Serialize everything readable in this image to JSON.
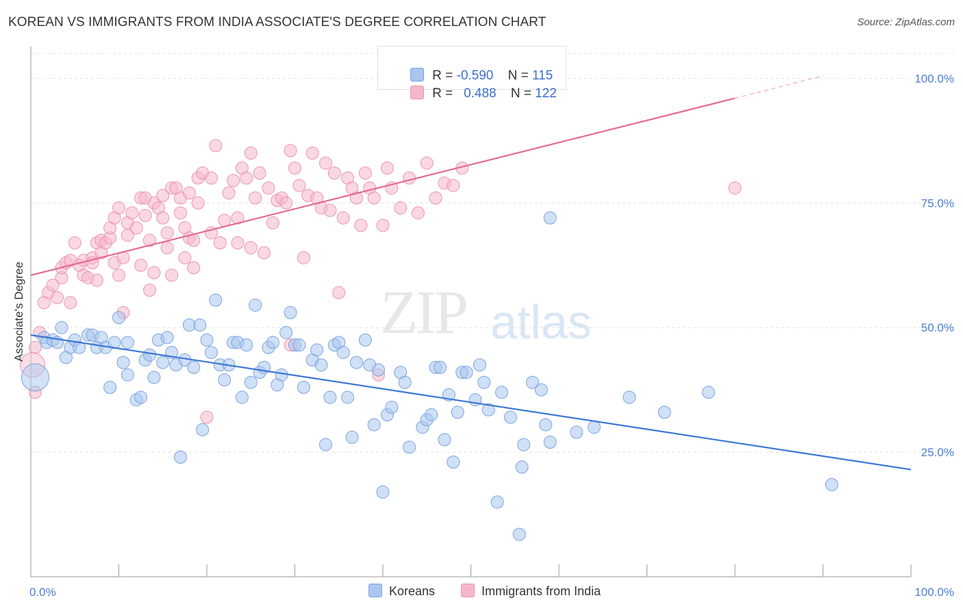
{
  "title": "KOREAN VS IMMIGRANTS FROM INDIA ASSOCIATE'S DEGREE CORRELATION CHART",
  "source": "Source: ZipAtlas.com",
  "watermark": {
    "zip": "ZIP",
    "atlas": "atlas"
  },
  "legend": {
    "rows": [
      {
        "r_label": "R = ",
        "r_value": "-0.590",
        "n_label": "N = ",
        "n_value": "115",
        "color": "#aac6ee"
      },
      {
        "r_label": "R = ",
        "r_value": "0.488",
        "n_label": "N = ",
        "n_value": "122",
        "color": "#f5b8cb"
      }
    ]
  },
  "bottom_legend": {
    "koreans": "Koreans",
    "india": "Immigrants from India"
  },
  "chart_data": {
    "type": "scatter",
    "title": "KOREAN VS IMMIGRANTS FROM INDIA ASSOCIATE'S DEGREE CORRELATION CHART",
    "xlabel": "",
    "ylabel": "Associate's Degree",
    "xlim": [
      0,
      100
    ],
    "ylim": [
      0,
      105
    ],
    "x_tick_labels": [
      "0.0%",
      "100.0%"
    ],
    "y_tick_labels": [
      "100.0%",
      "75.0%",
      "50.0%",
      "25.0%"
    ],
    "y_ticks": [
      100,
      75,
      50,
      25
    ],
    "grid": true,
    "colors": {
      "koreans": "#3a78d4",
      "india": "#e46a93",
      "koreans_fill": "#aac6ee",
      "india_fill": "#f5b8cb"
    },
    "series": [
      {
        "name": "Koreans",
        "trend": {
          "x": [
            0,
            100
          ],
          "y": [
            48.5,
            21.5
          ]
        },
        "points": [
          [
            1.5,
            48
          ],
          [
            1.8,
            47
          ],
          [
            2.5,
            47.5
          ],
          [
            3,
            47
          ],
          [
            3.5,
            50
          ],
          [
            4,
            44
          ],
          [
            4.5,
            46
          ],
          [
            5,
            47.5
          ],
          [
            5.5,
            46
          ],
          [
            6.5,
            48.5
          ],
          [
            7,
            48.5
          ],
          [
            7.5,
            46
          ],
          [
            8,
            48
          ],
          [
            8.5,
            46
          ],
          [
            9,
            38
          ],
          [
            9.5,
            47
          ],
          [
            10,
            52
          ],
          [
            10.5,
            43
          ],
          [
            11,
            40.5
          ],
          [
            11,
            47
          ],
          [
            12,
            35.5
          ],
          [
            12.5,
            36
          ],
          [
            13,
            43.5
          ],
          [
            13.5,
            44.5
          ],
          [
            14,
            40
          ],
          [
            14.5,
            47.5
          ],
          [
            15,
            43
          ],
          [
            15.5,
            48
          ],
          [
            16,
            45
          ],
          [
            16.5,
            42.5
          ],
          [
            17,
            24
          ],
          [
            17.5,
            43.5
          ],
          [
            18,
            50.5
          ],
          [
            18.5,
            42
          ],
          [
            19.2,
            50.5
          ],
          [
            19.5,
            29.5
          ],
          [
            20,
            47.5
          ],
          [
            20.5,
            45
          ],
          [
            21,
            55.5
          ],
          [
            21.5,
            42.5
          ],
          [
            22,
            39.5
          ],
          [
            22.5,
            42.5
          ],
          [
            23,
            47
          ],
          [
            23.5,
            47
          ],
          [
            24,
            36
          ],
          [
            24.5,
            46.5
          ],
          [
            25,
            39
          ],
          [
            25.5,
            54.5
          ],
          [
            26,
            41
          ],
          [
            26.5,
            42
          ],
          [
            27,
            46
          ],
          [
            27.5,
            47
          ],
          [
            28,
            38.5
          ],
          [
            28.5,
            40.5
          ],
          [
            29,
            49
          ],
          [
            29.5,
            53
          ],
          [
            30,
            46.5
          ],
          [
            30.5,
            46.5
          ],
          [
            31,
            38
          ],
          [
            32,
            43.5
          ],
          [
            32.5,
            45.5
          ],
          [
            33,
            42.5
          ],
          [
            33.5,
            26.5
          ],
          [
            34,
            36
          ],
          [
            34.5,
            46.5
          ],
          [
            35,
            47
          ],
          [
            35.5,
            45
          ],
          [
            36,
            36
          ],
          [
            36.5,
            28
          ],
          [
            37,
            43
          ],
          [
            38,
            47.5
          ],
          [
            38.5,
            42.5
          ],
          [
            39,
            30.5
          ],
          [
            39.5,
            41.5
          ],
          [
            40,
            17
          ],
          [
            40.5,
            32.5
          ],
          [
            41,
            34
          ],
          [
            42,
            41
          ],
          [
            42.5,
            39
          ],
          [
            43,
            26
          ],
          [
            44.5,
            30
          ],
          [
            45,
            31.5
          ],
          [
            45.5,
            32.5
          ],
          [
            46,
            42
          ],
          [
            46.5,
            42
          ],
          [
            47,
            27.5
          ],
          [
            47.5,
            36.5
          ],
          [
            48,
            23
          ],
          [
            48.5,
            33
          ],
          [
            49,
            41
          ],
          [
            49.5,
            41
          ],
          [
            50.5,
            35.5
          ],
          [
            51,
            42.5
          ],
          [
            51.5,
            39
          ],
          [
            52,
            33.5
          ],
          [
            53,
            15
          ],
          [
            53.5,
            37
          ],
          [
            54.5,
            32
          ],
          [
            55.5,
            8.5
          ],
          [
            55.8,
            22
          ],
          [
            56,
            26.5
          ],
          [
            57,
            39
          ],
          [
            58,
            37.5
          ],
          [
            58.5,
            30.5
          ],
          [
            59,
            27
          ],
          [
            59,
            72
          ],
          [
            62,
            29
          ],
          [
            64,
            30
          ],
          [
            68,
            36
          ],
          [
            72,
            33
          ],
          [
            77,
            37
          ],
          [
            91,
            18.5
          ]
        ]
      },
      {
        "name": "Immigrants from India",
        "trend": {
          "x": [
            0,
            80
          ],
          "y": [
            60.5,
            96
          ]
        },
        "trend_dashed": {
          "x": [
            80,
            90
          ],
          "y": [
            96,
            100.5
          ]
        },
        "points": [
          [
            0.5,
            46
          ],
          [
            1,
            49
          ],
          [
            1.5,
            55
          ],
          [
            2,
            57
          ],
          [
            2.5,
            58.5
          ],
          [
            3,
            56
          ],
          [
            3.5,
            60
          ],
          [
            3.5,
            62
          ],
          [
            4,
            63
          ],
          [
            4.5,
            63.5
          ],
          [
            4.5,
            55
          ],
          [
            5,
            67
          ],
          [
            5.5,
            62.5
          ],
          [
            6,
            63.5
          ],
          [
            6,
            60.5
          ],
          [
            6.5,
            60
          ],
          [
            7,
            64
          ],
          [
            7,
            63
          ],
          [
            7.5,
            67
          ],
          [
            7.5,
            59.5
          ],
          [
            8,
            65
          ],
          [
            8,
            67.5
          ],
          [
            8.5,
            67
          ],
          [
            9,
            68
          ],
          [
            9,
            70
          ],
          [
            9.5,
            72
          ],
          [
            9.5,
            63
          ],
          [
            10,
            60.5
          ],
          [
            10,
            74
          ],
          [
            10.5,
            64
          ],
          [
            10.5,
            53
          ],
          [
            11,
            71
          ],
          [
            11,
            68.5
          ],
          [
            11.5,
            73
          ],
          [
            12,
            70
          ],
          [
            12.5,
            76
          ],
          [
            12.5,
            62.5
          ],
          [
            13,
            76
          ],
          [
            13,
            72.5
          ],
          [
            13.5,
            67.5
          ],
          [
            13.5,
            57.5
          ],
          [
            14,
            75
          ],
          [
            14,
            61
          ],
          [
            14.5,
            74
          ],
          [
            15,
            76.5
          ],
          [
            15,
            72
          ],
          [
            15.5,
            69
          ],
          [
            15.5,
            66
          ],
          [
            16,
            78
          ],
          [
            16,
            60.5
          ],
          [
            16.5,
            78
          ],
          [
            17,
            76
          ],
          [
            17,
            73
          ],
          [
            17.5,
            70
          ],
          [
            17.5,
            64
          ],
          [
            18,
            77
          ],
          [
            18,
            68
          ],
          [
            18.5,
            67.5
          ],
          [
            18.5,
            62
          ],
          [
            19,
            80
          ],
          [
            19,
            75
          ],
          [
            19.5,
            81
          ],
          [
            20,
            32
          ],
          [
            20.5,
            69
          ],
          [
            20.5,
            80
          ],
          [
            21,
            86.5
          ],
          [
            21.5,
            67
          ],
          [
            22,
            71.5
          ],
          [
            22.5,
            77
          ],
          [
            23,
            79.5
          ],
          [
            23.5,
            72
          ],
          [
            23.5,
            67
          ],
          [
            24,
            82
          ],
          [
            24.5,
            80
          ],
          [
            25,
            85
          ],
          [
            25,
            66
          ],
          [
            25.5,
            76
          ],
          [
            26,
            81
          ],
          [
            26.5,
            65
          ],
          [
            27,
            78
          ],
          [
            27.5,
            71
          ],
          [
            28,
            75.5
          ],
          [
            28.5,
            76
          ],
          [
            29,
            75
          ],
          [
            29.5,
            85.5
          ],
          [
            29.5,
            46.5
          ],
          [
            30,
            82
          ],
          [
            30.5,
            78.5
          ],
          [
            31,
            64
          ],
          [
            31.5,
            76.5
          ],
          [
            32,
            85
          ],
          [
            32.5,
            76
          ],
          [
            33,
            74
          ],
          [
            33.5,
            83
          ],
          [
            34,
            73.5
          ],
          [
            34.5,
            81
          ],
          [
            35,
            57
          ],
          [
            35.5,
            72
          ],
          [
            36,
            80
          ],
          [
            36.5,
            78
          ],
          [
            37,
            76
          ],
          [
            37.5,
            70.5
          ],
          [
            38,
            81
          ],
          [
            38.5,
            78
          ],
          [
            39,
            76
          ],
          [
            39.5,
            40.5
          ],
          [
            40,
            70.5
          ],
          [
            40.5,
            82
          ],
          [
            41,
            78
          ],
          [
            42,
            74
          ],
          [
            43,
            80
          ],
          [
            44,
            73
          ],
          [
            45,
            83
          ],
          [
            46,
            76
          ],
          [
            47,
            79
          ],
          [
            48,
            78.5
          ],
          [
            49,
            82
          ],
          [
            80,
            78
          ],
          [
            0.5,
            37
          ]
        ]
      }
    ]
  }
}
